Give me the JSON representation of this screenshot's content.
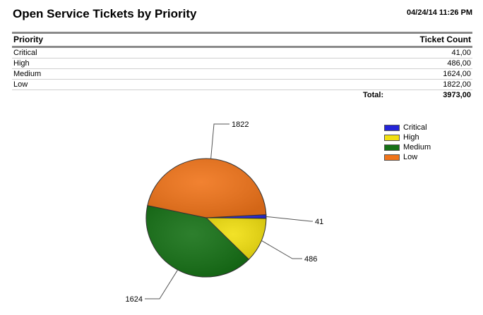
{
  "report": {
    "title": "Open Service Tickets by Priority",
    "timestamp": "04/24/14 11:26 PM"
  },
  "table": {
    "columns": [
      "Priority",
      "Ticket Count"
    ],
    "rows": [
      {
        "priority": "Critical",
        "count": "41,00"
      },
      {
        "priority": "High",
        "count": "486,00"
      },
      {
        "priority": "Medium",
        "count": "1624,00"
      },
      {
        "priority": "Low",
        "count": "1822,00"
      }
    ],
    "total_label": "Total:",
    "total_value": "3973,00"
  },
  "chart_data": {
    "type": "pie",
    "categories": [
      "Critical",
      "High",
      "Medium",
      "Low"
    ],
    "values": [
      41,
      486,
      1624,
      1822
    ],
    "labels": [
      "41",
      "486",
      "1624",
      "1822"
    ],
    "colors": [
      "#2424d8",
      "#f1df10",
      "#167116",
      "#f0741a"
    ],
    "legend": "top-right"
  }
}
